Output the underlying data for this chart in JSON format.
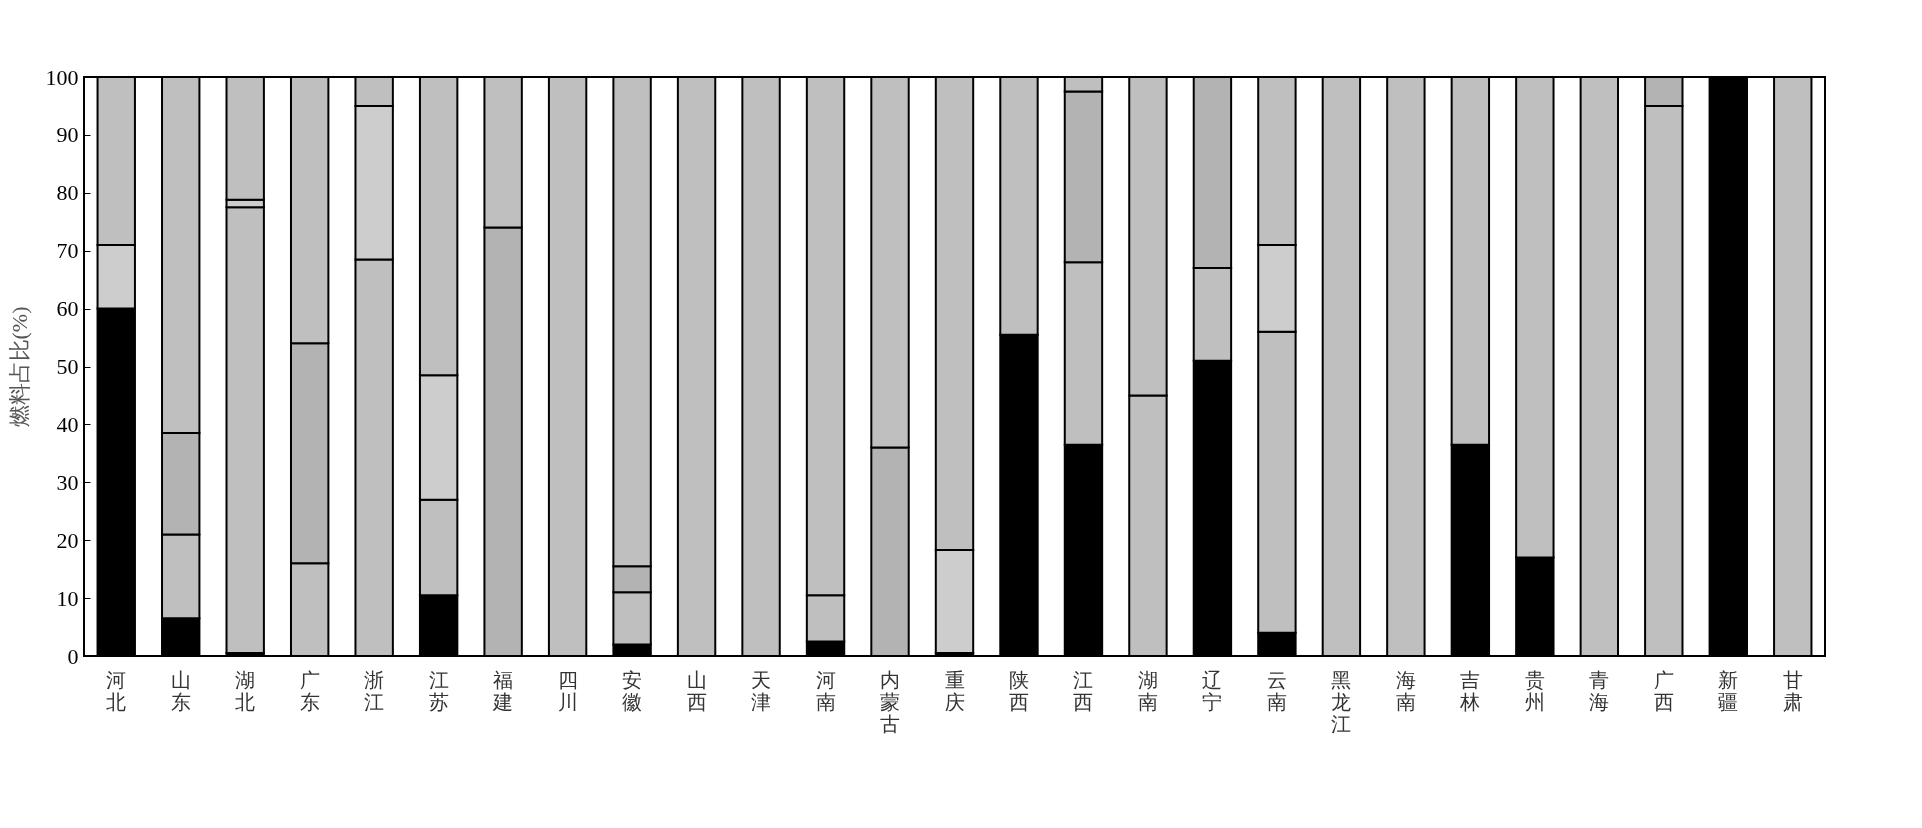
{
  "chart_data": {
    "type": "bar",
    "stacked": true,
    "ylabel": "燃料占比(%)",
    "categories": [
      "河北",
      "山东",
      "湖北",
      "广东",
      "浙江",
      "江苏",
      "福建",
      "四川",
      "安徽",
      "山西",
      "天津",
      "河南",
      "内蒙古",
      "重庆",
      "陕西",
      "江西",
      "湖南",
      "辽宁",
      "云南",
      "黑龙江",
      "海南",
      "吉林",
      "贵州",
      "青海",
      "广西",
      "新疆",
      "甘肃"
    ],
    "series": [
      {
        "color": "#000000",
        "values": [
          60,
          6.5,
          0.5,
          null,
          null,
          10.5,
          null,
          null,
          2,
          null,
          null,
          2.5,
          null,
          0.5,
          55.5,
          36.5,
          null,
          51,
          4,
          null,
          null,
          36.5,
          17,
          null,
          null,
          100,
          null
        ]
      },
      {
        "color": "#bfbfbf",
        "values": [
          null,
          14.5,
          77,
          16,
          68.5,
          16.5,
          null,
          null,
          9,
          null,
          null,
          8,
          null,
          null,
          null,
          31.5,
          45,
          16,
          52,
          null,
          null,
          null,
          null,
          null,
          95,
          null,
          null
        ]
      },
      {
        "color": "#cdcdcd",
        "values": [
          11,
          null,
          1.3,
          null,
          26.5,
          21.5,
          null,
          null,
          null,
          null,
          null,
          null,
          null,
          17.8,
          null,
          null,
          null,
          null,
          15,
          null,
          null,
          null,
          null,
          null,
          null,
          null,
          null
        ]
      },
      {
        "color": "#b3b3b3",
        "values": [
          null,
          17.5,
          null,
          38,
          null,
          null,
          74,
          null,
          4.5,
          null,
          null,
          null,
          36,
          null,
          null,
          29.5,
          null,
          33,
          null,
          null,
          null,
          null,
          null,
          null,
          5,
          null,
          null
        ]
      },
      {
        "color": "#bfbfbf",
        "values": [
          29,
          61.5,
          21.2,
          46,
          5,
          51.5,
          26,
          100,
          84.5,
          100,
          100,
          89.5,
          64,
          81.7,
          44.5,
          2.5,
          55,
          null,
          29,
          100,
          100,
          63.5,
          83,
          100,
          null,
          null,
          100
        ]
      }
    ],
    "ylim": [
      0,
      100
    ],
    "yticks": [
      0,
      10,
      20,
      30,
      40,
      50,
      60,
      70,
      80,
      90,
      100
    ],
    "grid": false,
    "legend": false
  }
}
